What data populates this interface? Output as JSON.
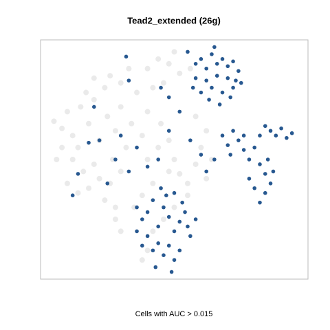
{
  "chart_data": {
    "type": "scatter",
    "title": "Tead2_extended (26g)",
    "xlabel": "Cells with AUC > 0.015",
    "xlim": [
      0,
      100
    ],
    "ylim": [
      0,
      100
    ],
    "series": [
      {
        "color": "#dcdcdc",
        "x": [
          5,
          8,
          10,
          12,
          15,
          14,
          18,
          20,
          22,
          25,
          24,
          28,
          30,
          27,
          20,
          16,
          12,
          10,
          14,
          18,
          22,
          26,
          30,
          32,
          34,
          30,
          26,
          20,
          36,
          38,
          40,
          42,
          38,
          35,
          8,
          6,
          24,
          28,
          33,
          17,
          40,
          44,
          48,
          52,
          46,
          56,
          50,
          42,
          45,
          48,
          50,
          52,
          55,
          58,
          60,
          62,
          58,
          55,
          48,
          44,
          40,
          62,
          64,
          50,
          46,
          42,
          30,
          28,
          40,
          38
        ],
        "values": [
          66,
          63,
          70,
          60,
          72,
          55,
          65,
          75,
          58,
          68,
          80,
          62,
          72,
          50,
          48,
          45,
          50,
          40,
          36,
          38,
          42,
          40,
          45,
          55,
          65,
          82,
          85,
          84,
          78,
          60,
          50,
          40,
          35,
          30,
          55,
          50,
          33,
          30,
          88,
          78,
          88,
          92,
          90,
          86,
          82,
          88,
          95,
          80,
          65,
          58,
          50,
          44,
          40,
          48,
          55,
          62,
          68,
          35,
          45,
          55,
          70,
          42,
          50,
          30,
          25,
          20,
          20,
          25,
          12,
          8
        ]
      },
      {
        "color": "#1b4f8a",
        "x": [
          55,
          58,
          60,
          62,
          64,
          66,
          68,
          70,
          72,
          74,
          75,
          72,
          70,
          68,
          66,
          64,
          62,
          60,
          58,
          63,
          67,
          71,
          73,
          65,
          57,
          68,
          70,
          72,
          74,
          76,
          78,
          80,
          82,
          84,
          86,
          88,
          90,
          92,
          94,
          82,
          84,
          86,
          84,
          82,
          80,
          78,
          85,
          87,
          76,
          71,
          65,
          36,
          38,
          40,
          42,
          44,
          46,
          48,
          50,
          52,
          54,
          56,
          58,
          40,
          42,
          44,
          46,
          48,
          50,
          52,
          38,
          36,
          45,
          47,
          50,
          53,
          55,
          49,
          43,
          32,
          33,
          20,
          22,
          18,
          14,
          12,
          25,
          28,
          33,
          40,
          44,
          48,
          52,
          56,
          60,
          62,
          30,
          36,
          45,
          48
        ],
        "values": [
          95,
          90,
          92,
          88,
          94,
          90,
          92,
          89,
          91,
          87,
          82,
          80,
          84,
          78,
          85,
          80,
          83,
          78,
          84,
          75,
          73,
          76,
          83,
          97,
          80,
          60,
          56,
          62,
          58,
          54,
          50,
          55,
          60,
          64,
          62,
          60,
          63,
          59,
          61,
          48,
          44,
          40,
          36,
          32,
          38,
          42,
          50,
          45,
          60,
          52,
          50,
          30,
          25,
          28,
          33,
          22,
          30,
          26,
          20,
          24,
          28,
          18,
          25,
          18,
          12,
          15,
          10,
          14,
          8,
          12,
          14,
          20,
          38,
          35,
          36,
          32,
          22,
          3,
          5,
          93,
          83,
          72,
          58,
          57,
          44,
          35,
          40,
          50,
          45,
          47,
          50,
          62,
          70,
          58,
          52,
          45,
          60,
          55,
          80,
          76
        ]
      }
    ]
  }
}
